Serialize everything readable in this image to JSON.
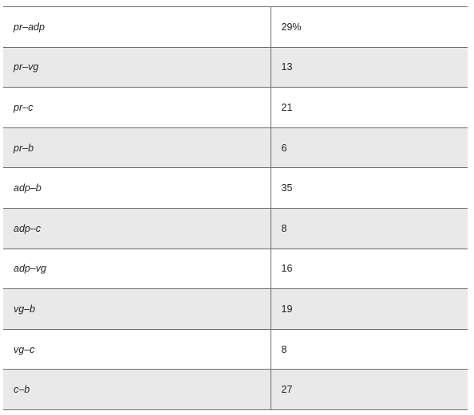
{
  "table": {
    "rows": [
      {
        "pair": "pr–adp",
        "value": "29%",
        "shaded": false
      },
      {
        "pair": "pr–vg",
        "value": "13",
        "shaded": true
      },
      {
        "pair": "pr–c",
        "value": "21",
        "shaded": false
      },
      {
        "pair": "pr–b",
        "value": "6",
        "shaded": true
      },
      {
        "pair": "adp–b",
        "value": "35",
        "shaded": false
      },
      {
        "pair": "adp–c",
        "value": "8",
        "shaded": true
      },
      {
        "pair": "adp–vg",
        "value": "16",
        "shaded": false
      },
      {
        "pair": "vg–b",
        "value": "19",
        "shaded": true
      },
      {
        "pair": "vg–c",
        "value": "8",
        "shaded": false
      },
      {
        "pair": "c–b",
        "value": "27",
        "shaded": true
      }
    ]
  },
  "colors": {
    "shaded_row": "#e9e9e9",
    "plain_row": "#ffffff",
    "rule": "#6b6b6b",
    "text": "#222222"
  }
}
